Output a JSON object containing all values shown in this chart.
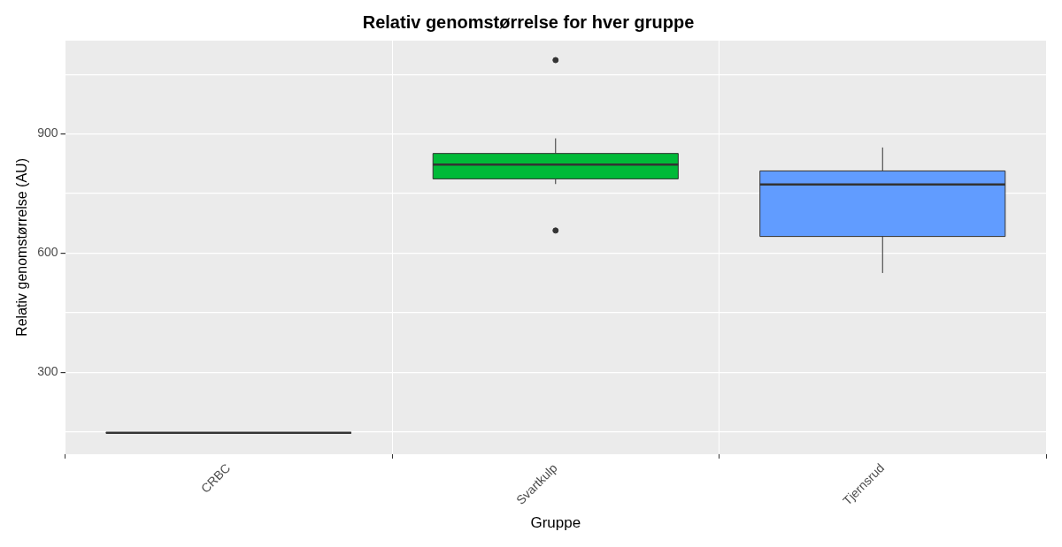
{
  "chart_data": {
    "type": "box",
    "title": "Relativ genomstørrelse for hver gruppe",
    "xlabel": "Gruppe",
    "ylabel": "Relativ genomstørrelse (AU)",
    "categories": [
      "CRBC",
      "Svartkulp",
      "Tjernsrud"
    ],
    "colors": [
      "#333333",
      "#00ba38",
      "#619cff"
    ],
    "boxes": [
      {
        "low": 148,
        "q1": 148,
        "median": 148,
        "q3": 148,
        "high": 148
      },
      {
        "low": 774,
        "q1": 787,
        "median": 823,
        "q3": 851,
        "high": 889,
        "outliers": [
          1086,
          657
        ]
      },
      {
        "low": 550,
        "q1": 642,
        "median": 773,
        "q3": 807,
        "high": 866
      }
    ],
    "ylim": [
      94,
      1135
    ],
    "yticks": [
      {
        "value": 150,
        "label": null
      },
      300,
      {
        "value": 450,
        "label": null
      },
      600,
      {
        "value": 750,
        "label": null
      },
      900,
      {
        "value": 1050,
        "label": null
      }
    ],
    "grid": true,
    "legend": false
  }
}
